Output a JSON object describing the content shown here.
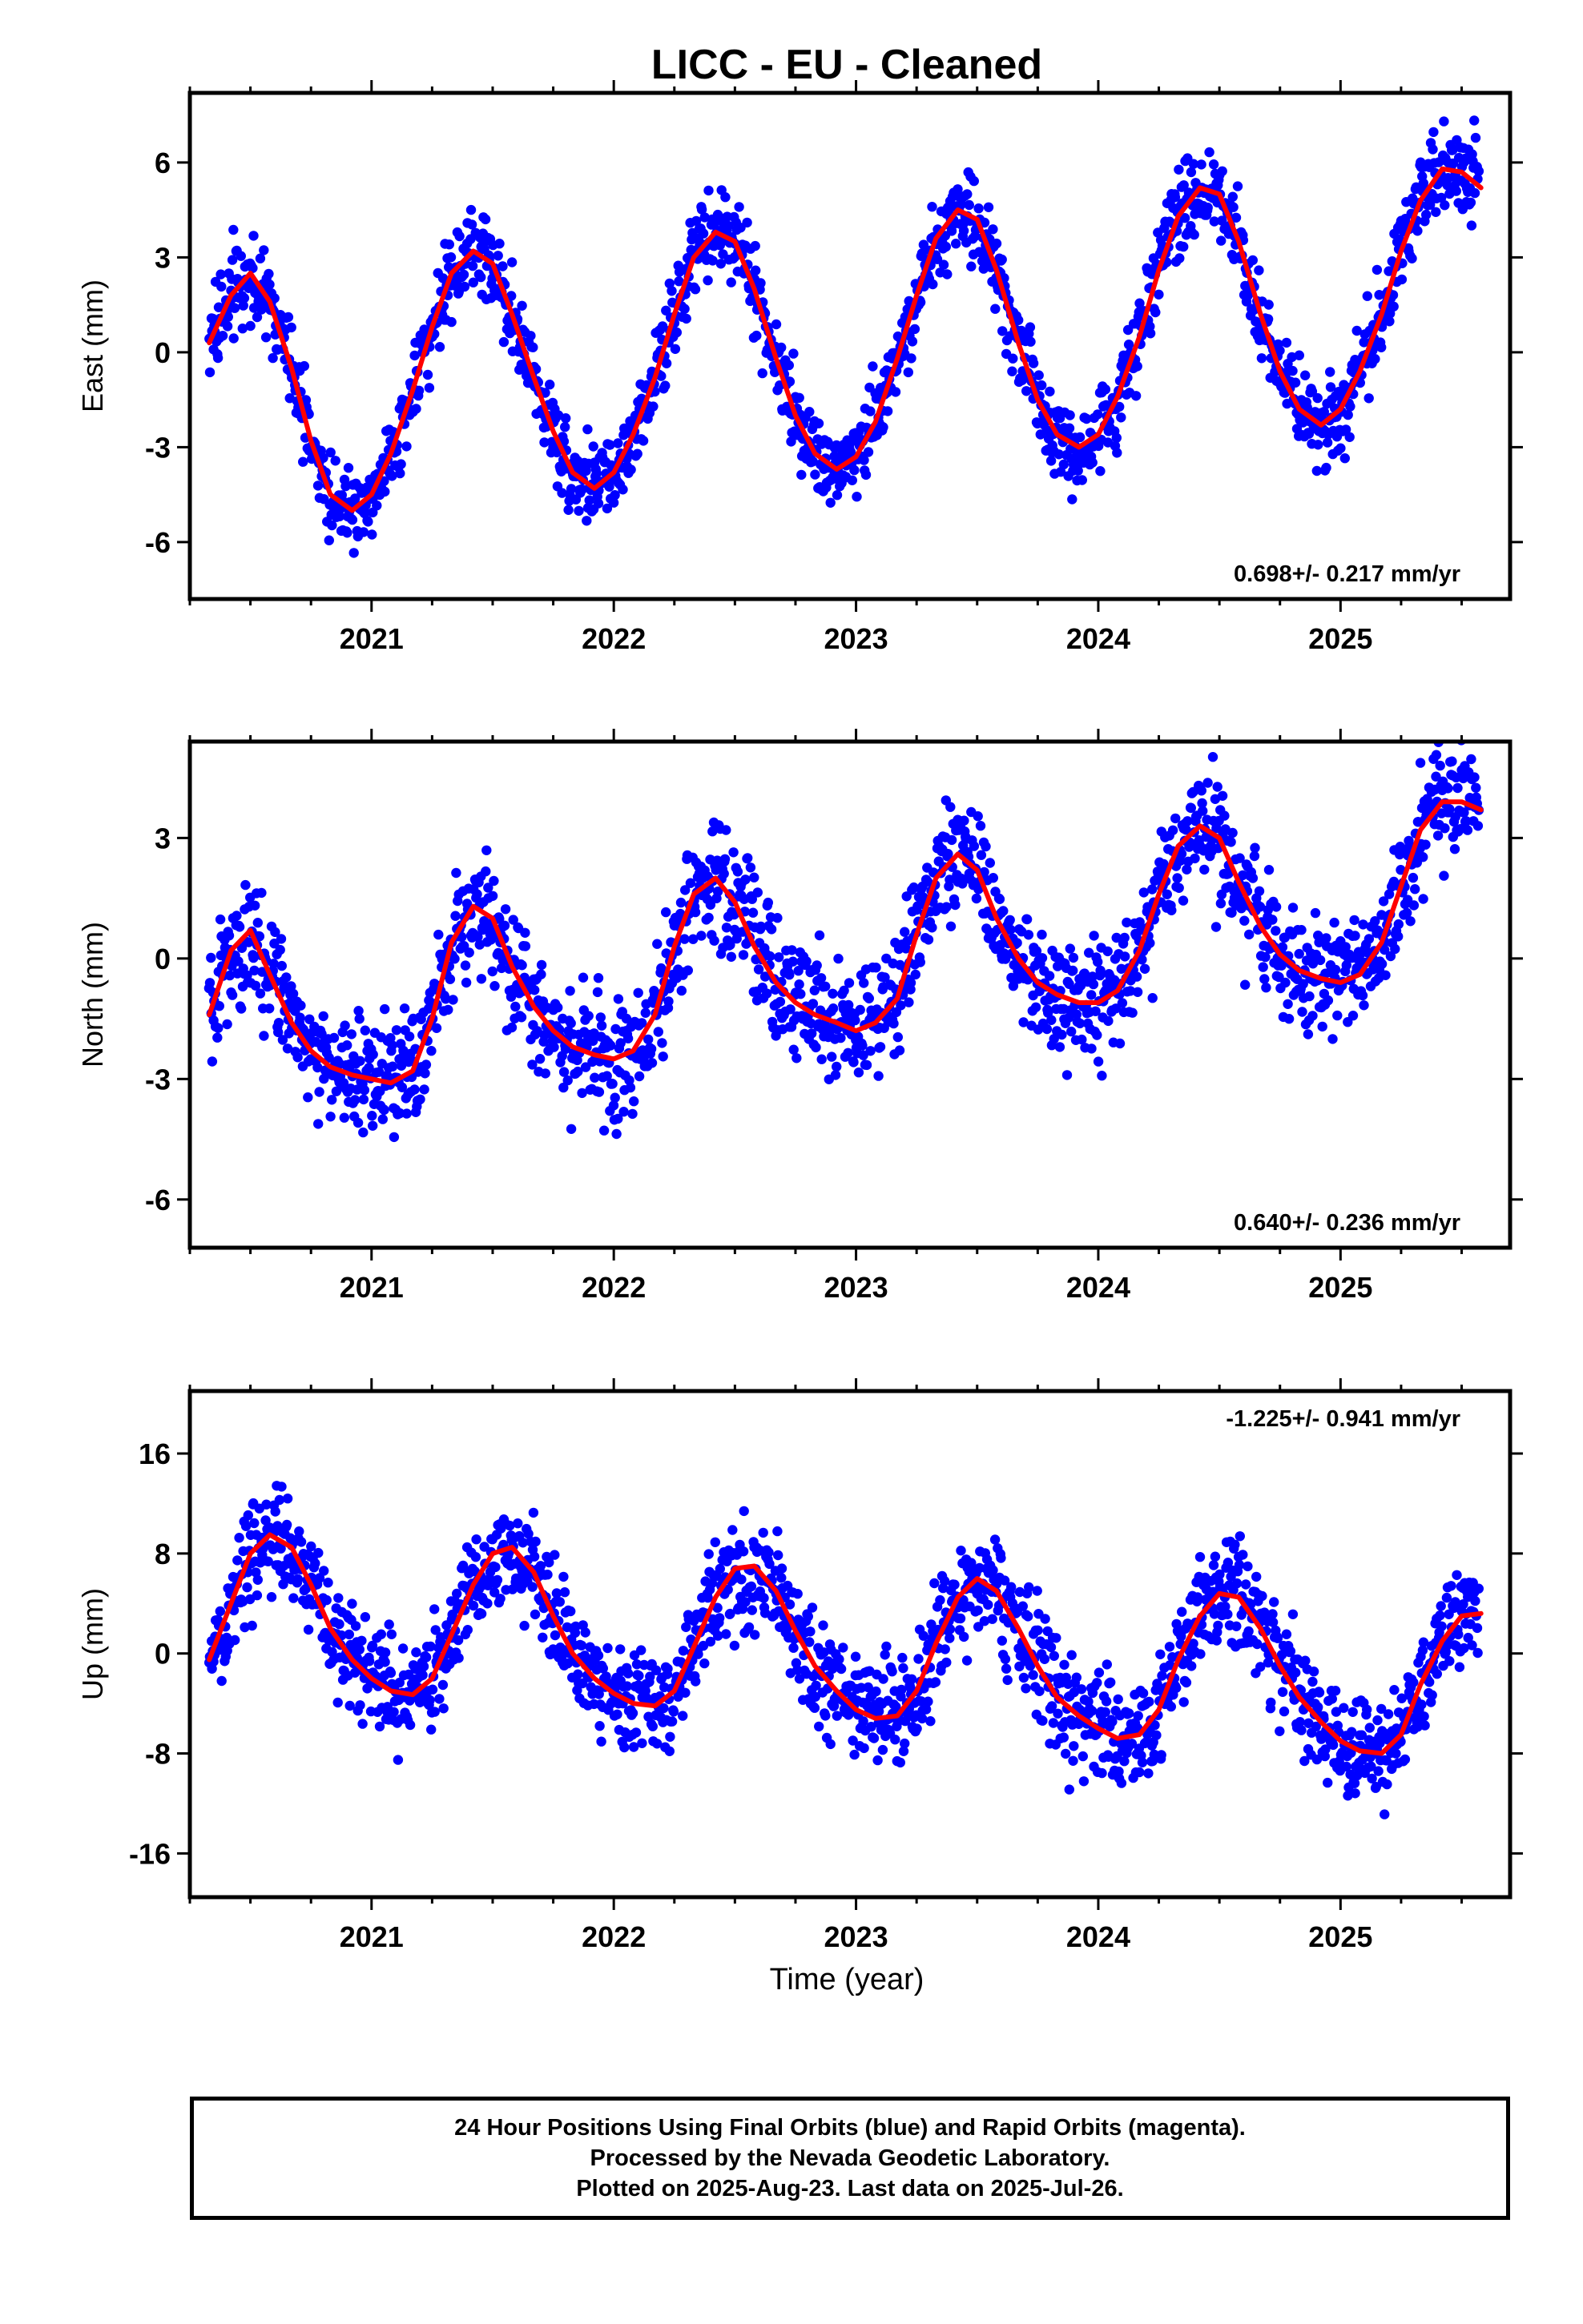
{
  "title": "LICC  - EU - Cleaned",
  "xlabel": "Time (year)",
  "footer": {
    "line1": "24 Hour Positions Using Final Orbits (blue) and Rapid Orbits (magenta).",
    "line2": "Processed by the Nevada Geodetic Laboratory.",
    "line3": "Plotted on 2025-Aug-23. Last data on 2025-Jul-26."
  },
  "colors": {
    "data_points": "#0000ff",
    "model_line": "#ff0000",
    "axes": "#000000"
  },
  "chart_data": [
    {
      "type": "scatter",
      "component": "east",
      "ylabel": "East (mm)",
      "rate_label": "0.698+/- 0.217 mm/yr",
      "xlim": [
        2020.25,
        2025.7
      ],
      "ylim": [
        -7.8,
        8.2
      ],
      "xticks": [
        2021,
        2022,
        2023,
        2024,
        2025
      ],
      "xtick_labels": [
        "2021",
        "2022",
        "2023",
        "2024",
        "2025"
      ],
      "yticks": [
        -6,
        -3,
        0,
        3,
        6
      ],
      "ytick_labels": [
        "-6",
        "-3",
        "0",
        "3",
        "6"
      ],
      "model": {
        "x": [
          2020.33,
          2020.42,
          2020.5,
          2020.58,
          2020.67,
          2020.75,
          2020.83,
          2020.92,
          2021.0,
          2021.08,
          2021.17,
          2021.25,
          2021.33,
          2021.42,
          2021.5,
          2021.58,
          2021.67,
          2021.75,
          2021.83,
          2021.92,
          2022.0,
          2022.08,
          2022.17,
          2022.25,
          2022.33,
          2022.42,
          2022.5,
          2022.58,
          2022.67,
          2022.75,
          2022.83,
          2022.92,
          2023.0,
          2023.08,
          2023.17,
          2023.25,
          2023.33,
          2023.42,
          2023.5,
          2023.58,
          2023.67,
          2023.75,
          2023.83,
          2023.92,
          2024.0,
          2024.08,
          2024.17,
          2024.25,
          2024.33,
          2024.42,
          2024.5,
          2024.58,
          2024.67,
          2024.75,
          2024.83,
          2024.92,
          2025.0,
          2025.08,
          2025.17,
          2025.25,
          2025.33,
          2025.42,
          2025.5,
          2025.58
        ],
        "y": [
          0.3,
          1.8,
          2.5,
          1.6,
          -0.5,
          -2.8,
          -4.5,
          -5.0,
          -4.5,
          -3.2,
          -1.2,
          0.8,
          2.5,
          3.2,
          2.8,
          1.2,
          -0.8,
          -2.5,
          -3.8,
          -4.3,
          -3.8,
          -2.6,
          -0.8,
          1.2,
          3.0,
          3.8,
          3.5,
          2.0,
          -0.2,
          -2.0,
          -3.2,
          -3.7,
          -3.3,
          -2.2,
          -0.2,
          1.8,
          3.6,
          4.5,
          4.2,
          2.6,
          0.3,
          -1.5,
          -2.6,
          -3.0,
          -2.6,
          -1.4,
          0.5,
          2.6,
          4.3,
          5.2,
          5.0,
          3.5,
          1.2,
          -0.6,
          -1.8,
          -2.3,
          -1.8,
          -0.6,
          1.2,
          3.2,
          4.8,
          5.8,
          5.7,
          5.2
        ]
      },
      "noise_amplitude": 1.0
    },
    {
      "type": "scatter",
      "component": "north",
      "ylabel": "North (mm)",
      "rate_label": "0.640+/- 0.236 mm/yr",
      "xlim": [
        2020.25,
        2025.7
      ],
      "ylim": [
        -7.2,
        5.4
      ],
      "xticks": [
        2021,
        2022,
        2023,
        2024,
        2025
      ],
      "xtick_labels": [
        "2021",
        "2022",
        "2023",
        "2024",
        "2025"
      ],
      "yticks": [
        -6,
        -3,
        0,
        3
      ],
      "ytick_labels": [
        "-6",
        "-3",
        "0",
        "3"
      ],
      "model": {
        "x": [
          2020.33,
          2020.42,
          2020.5,
          2020.58,
          2020.67,
          2020.75,
          2020.83,
          2020.92,
          2021.0,
          2021.08,
          2021.17,
          2021.25,
          2021.33,
          2021.42,
          2021.5,
          2021.58,
          2021.67,
          2021.75,
          2021.83,
          2021.92,
          2022.0,
          2022.08,
          2022.17,
          2022.25,
          2022.33,
          2022.42,
          2022.5,
          2022.58,
          2022.67,
          2022.75,
          2022.83,
          2022.92,
          2023.0,
          2023.08,
          2023.17,
          2023.25,
          2023.33,
          2023.42,
          2023.5,
          2023.58,
          2023.67,
          2023.75,
          2023.83,
          2023.92,
          2024.0,
          2024.08,
          2024.17,
          2024.25,
          2024.33,
          2024.42,
          2024.5,
          2024.58,
          2024.67,
          2024.75,
          2024.83,
          2024.92,
          2025.0,
          2025.08,
          2025.17,
          2025.25,
          2025.33,
          2025.42,
          2025.5,
          2025.58
        ],
        "y": [
          -1.4,
          0.2,
          0.7,
          -0.4,
          -1.6,
          -2.3,
          -2.7,
          -2.9,
          -3.0,
          -3.1,
          -2.8,
          -1.5,
          0.4,
          1.3,
          1.0,
          -0.2,
          -1.2,
          -1.8,
          -2.2,
          -2.4,
          -2.5,
          -2.3,
          -1.4,
          0.3,
          1.6,
          2.0,
          1.4,
          0.3,
          -0.6,
          -1.1,
          -1.4,
          -1.6,
          -1.8,
          -1.6,
          -1.0,
          0.6,
          2.0,
          2.6,
          2.2,
          1.0,
          0.0,
          -0.6,
          -0.9,
          -1.1,
          -1.1,
          -0.8,
          0.2,
          1.6,
          2.8,
          3.3,
          3.0,
          1.9,
          0.8,
          0.1,
          -0.3,
          -0.5,
          -0.6,
          -0.4,
          0.4,
          1.8,
          3.2,
          3.9,
          3.9,
          3.7
        ]
      },
      "noise_amplitude": 1.1
    },
    {
      "type": "scatter",
      "component": "up",
      "ylabel": "Up (mm)",
      "rate_label": "-1.225+/- 0.941 mm/yr",
      "xlim": [
        2020.25,
        2025.7
      ],
      "ylim": [
        -19.5,
        21.0
      ],
      "xticks": [
        2021,
        2022,
        2023,
        2024,
        2025
      ],
      "xtick_labels": [
        "2021",
        "2022",
        "2023",
        "2024",
        "2025"
      ],
      "yticks": [
        -16,
        -8,
        0,
        8,
        16
      ],
      "ytick_labels": [
        "-16",
        "-8",
        "0",
        "8",
        "16"
      ],
      "model": {
        "x": [
          2020.33,
          2020.42,
          2020.5,
          2020.58,
          2020.67,
          2020.75,
          2020.83,
          2020.92,
          2021.0,
          2021.08,
          2021.17,
          2021.25,
          2021.33,
          2021.42,
          2021.5,
          2021.58,
          2021.67,
          2021.75,
          2021.83,
          2021.92,
          2022.0,
          2022.08,
          2022.17,
          2022.25,
          2022.33,
          2022.42,
          2022.5,
          2022.58,
          2022.67,
          2022.75,
          2022.83,
          2022.92,
          2023.0,
          2023.08,
          2023.17,
          2023.25,
          2023.33,
          2023.42,
          2023.5,
          2023.58,
          2023.67,
          2023.75,
          2023.83,
          2023.92,
          2024.0,
          2024.08,
          2024.17,
          2024.25,
          2024.33,
          2024.42,
          2024.5,
          2024.58,
          2024.67,
          2024.75,
          2024.83,
          2024.92,
          2025.0,
          2025.08,
          2025.17,
          2025.25,
          2025.33,
          2025.42,
          2025.5,
          2025.58
        ],
        "y": [
          -0.5,
          4.0,
          8.0,
          9.5,
          8.5,
          5.5,
          2.0,
          -0.5,
          -2.0,
          -3.0,
          -3.3,
          -2.0,
          1.5,
          5.5,
          8.0,
          8.5,
          6.5,
          3.0,
          0.0,
          -2.0,
          -3.2,
          -4.0,
          -4.2,
          -3.0,
          0.5,
          4.5,
          6.8,
          7.0,
          5.0,
          1.8,
          -1.0,
          -3.0,
          -4.5,
          -5.2,
          -5.0,
          -3.0,
          0.8,
          4.5,
          6.0,
          5.0,
          2.0,
          -1.0,
          -3.5,
          -5.0,
          -6.0,
          -6.8,
          -6.5,
          -4.5,
          -0.5,
          3.0,
          4.8,
          4.5,
          2.0,
          -1.0,
          -3.5,
          -5.5,
          -7.0,
          -7.8,
          -8.0,
          -6.5,
          -2.5,
          1.0,
          3.0,
          3.2
        ]
      },
      "noise_amplitude": 3.2
    }
  ]
}
